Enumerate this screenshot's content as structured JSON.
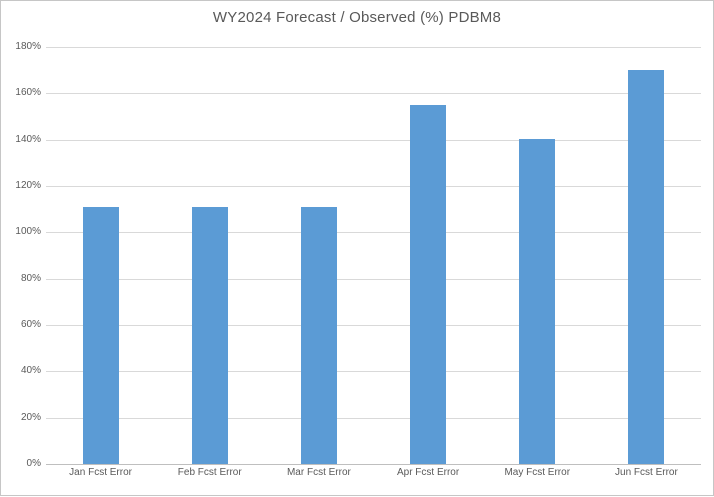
{
  "chart": {
    "colors": {
      "bar": "#5B9BD5",
      "gridline": "#D9D9D9",
      "axis_line": "#BFBFBF",
      "text": "#595959",
      "border": "#C6C6C6",
      "background": "#FFFFFF"
    }
  },
  "chart_data": {
    "type": "bar",
    "title": "WY2024 Forecast / Observed (%) PDBM8",
    "categories": [
      "Jan Fcst Error",
      "Feb Fcst Error",
      "Mar Fcst Error",
      "Apr Fcst Error",
      "May Fcst Error",
      "Jun Fcst Error"
    ],
    "values": [
      111,
      111,
      111,
      155,
      140.5,
      170
    ],
    "unit": "%",
    "xlabel": "",
    "ylabel": "",
    "ylim": [
      0,
      180
    ],
    "ytick_step": 20,
    "ytick_labels": [
      "0%",
      "20%",
      "40%",
      "60%",
      "80%",
      "100%",
      "120%",
      "140%",
      "160%",
      "180%"
    ],
    "grid": true,
    "legend": false,
    "legend_position": "none"
  }
}
